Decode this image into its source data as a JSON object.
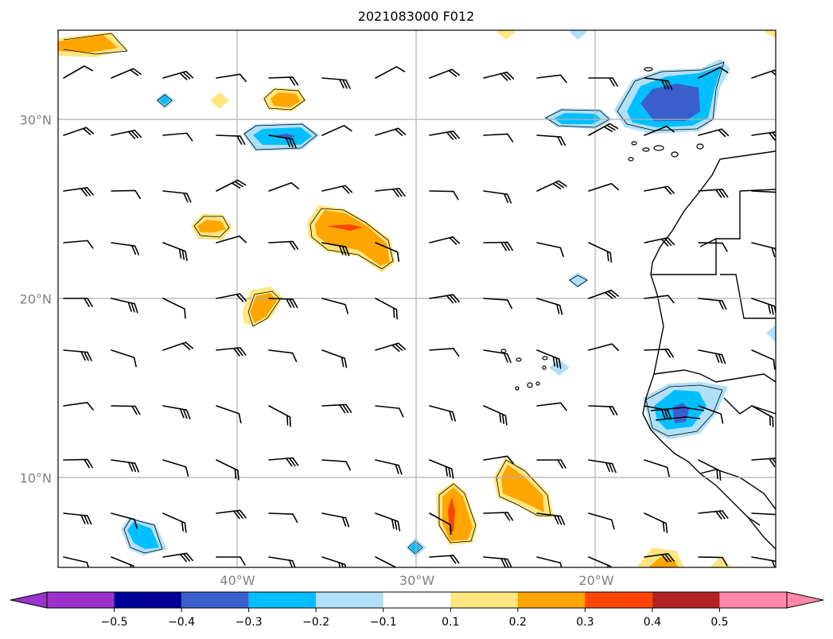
{
  "title": "2021083000 F012",
  "map": {
    "lat_range": [
      5,
      35
    ],
    "lon_range": [
      -50,
      -10
    ],
    "lat_labels": [
      {
        "lat": 30,
        "label": "30°N"
      },
      {
        "lat": 20,
        "label": "20°N"
      },
      {
        "lat": 10,
        "label": "10°N"
      }
    ],
    "lon_labels": [
      {
        "lon": -40,
        "label": "40°W"
      },
      {
        "lon": -30,
        "label": "30°W"
      },
      {
        "lon": -20,
        "label": "20°W"
      }
    ],
    "grid": true,
    "gridline_lons": [
      -40,
      -30,
      -20
    ],
    "gridline_lats": [
      10,
      20,
      30
    ]
  },
  "colorbar": {
    "extend": "both",
    "bounds": [
      -0.5,
      -0.4,
      -0.3,
      -0.2,
      -0.1,
      0.1,
      0.2,
      0.3,
      0.4,
      0.5
    ],
    "tick_labels": [
      "−0.5",
      "−0.4",
      "−0.3",
      "−0.2",
      "−0.1",
      "0.1",
      "0.2",
      "0.3",
      "0.4",
      "0.5"
    ],
    "colors": [
      "#9933cc",
      "#000099",
      "#3a5fcd",
      "#00bfff",
      "#b0e0f8",
      "#ffffff",
      "#ffe680",
      "#ffa500",
      "#ff4500",
      "#b22222",
      "#ff88aa"
    ]
  }
}
